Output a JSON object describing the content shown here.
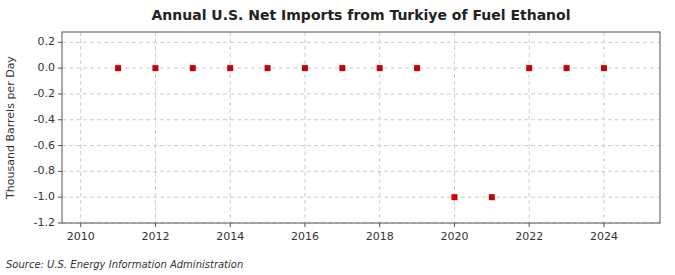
{
  "chart_data": {
    "type": "scatter",
    "title": "Annual U.S. Net Imports from Turkiye of Fuel Ethanol",
    "ylabel": "Thousand Barrels per Day",
    "annotation": "Source: U.S. Energy Information Administration",
    "x": [
      2011,
      2012,
      2013,
      2014,
      2015,
      2016,
      2017,
      2018,
      2019,
      2020,
      2021,
      2022,
      2023,
      2024
    ],
    "values": [
      0.0,
      0.0,
      0.0,
      0.0,
      0.0,
      0.0,
      0.0,
      0.0,
      0.0,
      -1.0,
      -1.0,
      0.0,
      0.0,
      0.0
    ],
    "xlim": [
      2009.5,
      2025.5
    ],
    "ylim": [
      -1.2,
      0.28
    ],
    "xticks": [
      2010,
      2012,
      2014,
      2016,
      2018,
      2020,
      2022,
      2024
    ],
    "yticks": [
      0.2,
      {
        "value": 0.0,
        "label": "0.0"
      },
      -0.2,
      -0.4,
      -0.6,
      -0.8,
      {
        "value": -1.0,
        "label": "-1.0"
      },
      -1.2
    ],
    "color": "#cc0000",
    "marker": "square",
    "grid": true
  }
}
